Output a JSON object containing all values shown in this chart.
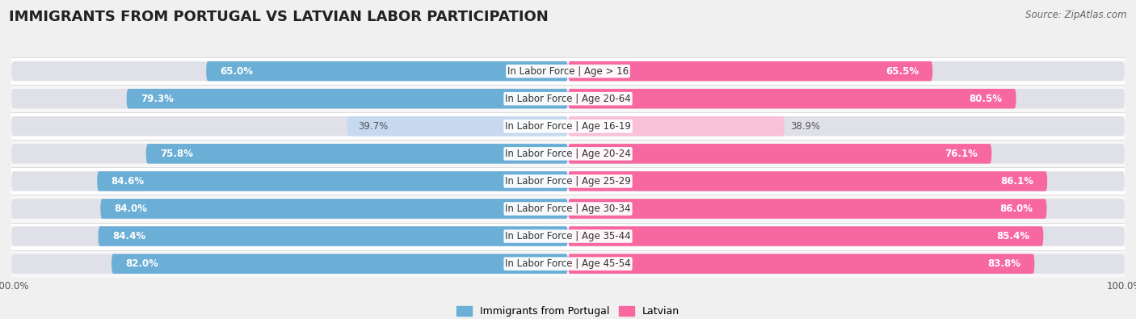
{
  "title": "IMMIGRANTS FROM PORTUGAL VS LATVIAN LABOR PARTICIPATION",
  "source": "Source: ZipAtlas.com",
  "categories": [
    "In Labor Force | Age > 16",
    "In Labor Force | Age 20-64",
    "In Labor Force | Age 16-19",
    "In Labor Force | Age 20-24",
    "In Labor Force | Age 25-29",
    "In Labor Force | Age 30-34",
    "In Labor Force | Age 35-44",
    "In Labor Force | Age 45-54"
  ],
  "portugal_values": [
    65.0,
    79.3,
    39.7,
    75.8,
    84.6,
    84.0,
    84.4,
    82.0
  ],
  "latvian_values": [
    65.5,
    80.5,
    38.9,
    76.1,
    86.1,
    86.0,
    85.4,
    83.8
  ],
  "portugal_color": "#6baed6",
  "latvian_color": "#f768a1",
  "portugal_color_light": "#c6d9ef",
  "latvian_color_light": "#f9c0d8",
  "background_color": "#f0f0f0",
  "row_even_color": "#f7f7f7",
  "row_odd_color": "#ffffff",
  "title_fontsize": 13,
  "label_fontsize": 8.5,
  "value_fontsize": 8.5,
  "legend_fontsize": 9,
  "axis_max": 100.0
}
